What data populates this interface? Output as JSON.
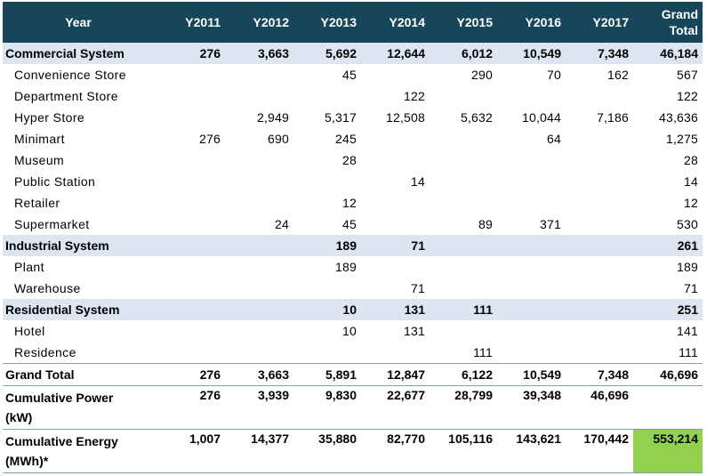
{
  "table": {
    "header": [
      "Year",
      "Y2011",
      "Y2012",
      "Y2013",
      "Y2014",
      "Y2015",
      "Y2016",
      "Y2017",
      "Grand Total"
    ],
    "rows": [
      {
        "label": "Commercial System",
        "cells": [
          "276",
          "3,663",
          "5,692",
          "12,644",
          "6,012",
          "10,549",
          "7,348",
          "46,184"
        ]
      },
      {
        "label": "Convenience Store",
        "cells": [
          null,
          null,
          "45",
          null,
          "290",
          "70",
          "162",
          "567"
        ]
      },
      {
        "label": "Department Store",
        "cells": [
          null,
          null,
          null,
          "122",
          null,
          null,
          null,
          "122"
        ]
      },
      {
        "label": "Hyper Store",
        "cells": [
          null,
          "2,949",
          "5,317",
          "12,508",
          "5,632",
          "10,044",
          "7,186",
          "43,636"
        ]
      },
      {
        "label": "Minimart",
        "cells": [
          "276",
          "690",
          "245",
          null,
          null,
          "64",
          null,
          "1,275"
        ]
      },
      {
        "label": "Museum",
        "cells": [
          null,
          null,
          "28",
          null,
          null,
          null,
          null,
          "28"
        ]
      },
      {
        "label": "Public Station",
        "cells": [
          null,
          null,
          null,
          "14",
          null,
          null,
          null,
          "14"
        ]
      },
      {
        "label": "Retailer",
        "cells": [
          null,
          null,
          "12",
          null,
          null,
          null,
          null,
          "12"
        ]
      },
      {
        "label": "Supermarket",
        "cells": [
          null,
          "24",
          "45",
          null,
          "89",
          "371",
          null,
          "530"
        ]
      },
      {
        "label": "Industrial System",
        "cells": [
          null,
          null,
          "189",
          "71",
          null,
          null,
          null,
          "261"
        ]
      },
      {
        "label": "Plant",
        "cells": [
          null,
          null,
          "189",
          null,
          null,
          null,
          null,
          "189"
        ]
      },
      {
        "label": "Warehouse",
        "cells": [
          null,
          null,
          null,
          "71",
          null,
          null,
          null,
          "71"
        ]
      },
      {
        "label": "Residential System",
        "cells": [
          null,
          null,
          "10",
          "131",
          "111",
          null,
          null,
          "251"
        ]
      },
      {
        "label": "Hotel",
        "cells": [
          null,
          null,
          "10",
          "131",
          null,
          null,
          null,
          "141"
        ]
      },
      {
        "label": "Residence",
        "cells": [
          null,
          null,
          null,
          null,
          "111",
          null,
          null,
          "111"
        ]
      },
      {
        "label": "Grand Total",
        "cells": [
          "276",
          "3,663",
          "5,891",
          "12,847",
          "6,122",
          "10,549",
          "7,348",
          "46,696"
        ]
      },
      {
        "label": "Cumulative Power (kW)",
        "cells": [
          "276",
          "3,939",
          "9,830",
          "22,677",
          "28,799",
          "39,348",
          "46,696",
          null
        ]
      },
      {
        "label": "Cumulative Energy (MWh)*",
        "cells": [
          "1,007",
          "14,377",
          "35,880",
          "82,770",
          "105,116",
          "143,621",
          "170,442",
          "553,214"
        ]
      }
    ]
  }
}
